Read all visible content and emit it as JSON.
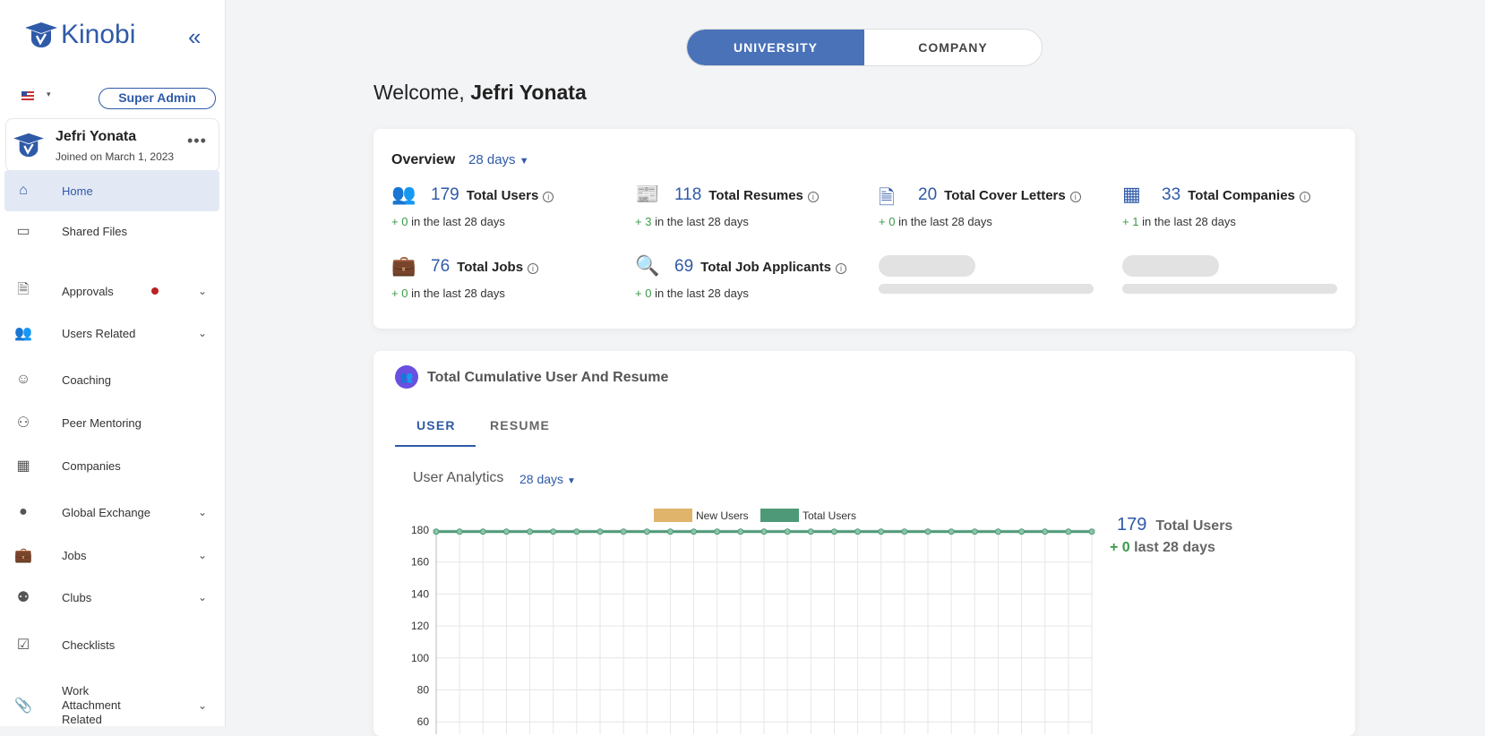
{
  "sidebar": {
    "brand": "Kinobi",
    "role": "Super Admin",
    "user": {
      "name": "Jefri Yonata",
      "joined": "Joined on March 1, 2023"
    },
    "items": [
      {
        "label": "Home",
        "icon": "home-icon",
        "active": true
      },
      {
        "label": "Shared Files",
        "icon": "folder-icon"
      },
      {
        "label": "Approvals",
        "icon": "document-check-icon",
        "badge": true,
        "expandable": true
      },
      {
        "label": "Users Related",
        "icon": "users-icon",
        "expandable": true
      },
      {
        "label": "Coaching",
        "icon": "coaching-icon"
      },
      {
        "label": "Peer Mentoring",
        "icon": "peer-mentoring-icon"
      },
      {
        "label": "Companies",
        "icon": "building-icon"
      },
      {
        "label": "Global Exchange",
        "icon": "globe-icon",
        "expandable": true
      },
      {
        "label": "Jobs",
        "icon": "briefcase-icon",
        "expandable": true
      },
      {
        "label": "Clubs",
        "icon": "group-icon",
        "expandable": true
      },
      {
        "label": "Checklists",
        "icon": "checkbox-icon"
      },
      {
        "label": "Work Attachment Related",
        "icon": "paperclip-icon",
        "expandable": true
      }
    ]
  },
  "toggle": {
    "university": "UNIVERSITY",
    "company": "COMPANY",
    "selected": "UNIVERSITY"
  },
  "welcome": {
    "prefix": "Welcome, ",
    "name": "Jefri Yonata"
  },
  "overview": {
    "title": "Overview",
    "period": "28 days",
    "stats": [
      {
        "value": "179",
        "label": "Total Users",
        "delta": "+ 0",
        "suffix": "in the last 28 days"
      },
      {
        "value": "118",
        "label": "Total Resumes",
        "delta": "+ 3",
        "suffix": "in the last 28 days"
      },
      {
        "value": "20",
        "label": "Total Cover Letters",
        "delta": "+ 0",
        "suffix": "in the last 28 days"
      },
      {
        "value": "33",
        "label": "Total Companies",
        "delta": "+ 1",
        "suffix": "in the last 28 days"
      },
      {
        "value": "76",
        "label": "Total Jobs",
        "delta": "+ 0",
        "suffix": "in the last 28 days"
      },
      {
        "value": "69",
        "label": "Total Job Applicants",
        "delta": "+ 0",
        "suffix": "in the last 28 days"
      }
    ]
  },
  "cumulative": {
    "title": "Total Cumulative User And Resume",
    "tabs": [
      "USER",
      "RESUME"
    ],
    "analytics_title": "User Analytics",
    "period": "28 days",
    "summary": {
      "value": "179",
      "label": "Total Users",
      "delta": "+ 0",
      "suffix": "last 28 days"
    }
  },
  "chart_data": {
    "type": "line",
    "legend": [
      "New Users",
      "Total Users"
    ],
    "legend_placement": "top",
    "colors": {
      "New Users": "#e0b46a",
      "Total Users": "#4e9a78"
    },
    "yticks": [
      180,
      160,
      140,
      120,
      100,
      80,
      60
    ],
    "ylim": [
      0,
      180
    ],
    "grid": true,
    "series": [
      {
        "name": "Total Users",
        "values": [
          179,
          179,
          179,
          179,
          179,
          179,
          179,
          179,
          179,
          179,
          179,
          179,
          179,
          179,
          179,
          179,
          179,
          179,
          179,
          179,
          179,
          179,
          179,
          179,
          179,
          179,
          179,
          179,
          179
        ]
      }
    ]
  }
}
